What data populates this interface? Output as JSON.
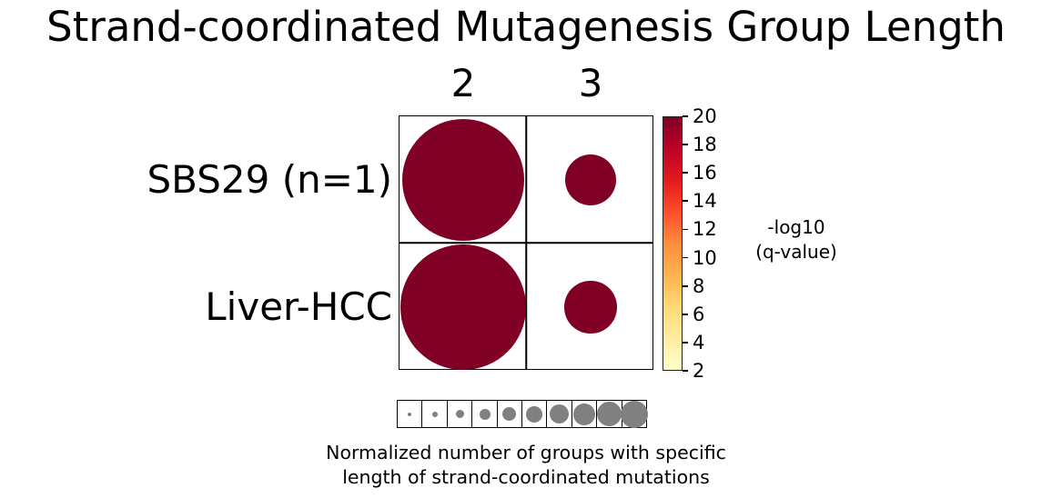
{
  "title": "Strand-coordinated Mutagenesis Group Length",
  "chart_data": {
    "type": "scatter",
    "subtype": "bubble-matrix",
    "title": "Strand-coordinated Mutagenesis Group Length",
    "columns": [
      "2",
      "3"
    ],
    "rows": [
      "SBS29 (n=1)",
      "Liver-HCC"
    ],
    "bubble_color": "#800026",
    "size_values": [
      [
        0.96,
        0.4
      ],
      [
        0.98,
        0.41
      ]
    ],
    "color_values": [
      [
        20,
        20
      ],
      [
        20,
        20
      ]
    ],
    "colorbar": {
      "label_lines": [
        "-log10",
        "(q-value)"
      ],
      "ticks": [
        20,
        18,
        16,
        14,
        12,
        10,
        8,
        6,
        4,
        2
      ],
      "min": 2,
      "max": 20,
      "colormap": "YlOrRd",
      "gradient_stops": [
        "#800026",
        "#bd0026",
        "#e31a1c",
        "#fc4e2a",
        "#fd8d3c",
        "#feb24c",
        "#fed976",
        "#ffeda0",
        "#ffffcc"
      ]
    },
    "size_legend": {
      "values": [
        0.1,
        0.2,
        0.3,
        0.4,
        0.5,
        0.6,
        0.7,
        0.8,
        0.9,
        1.0
      ],
      "circle_color": "#808080",
      "caption_lines": [
        "Normalized number of groups with specific",
        "length of strand-coordinated mutations"
      ]
    }
  }
}
